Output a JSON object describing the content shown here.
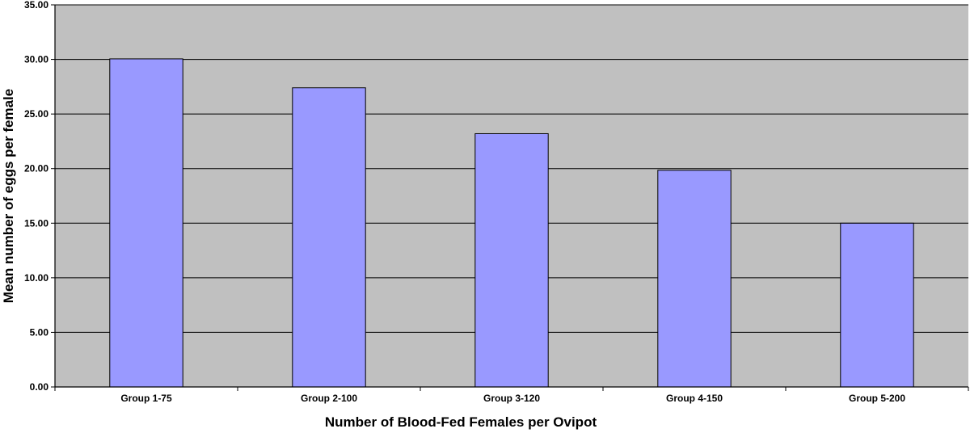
{
  "chart_data": {
    "type": "bar",
    "categories": [
      "Group 1-75",
      "Group 2-100",
      "Group 3-120",
      "Group 4-150",
      "Group 5-200"
    ],
    "values": [
      30.05,
      27.4,
      23.2,
      19.85,
      15.0
    ],
    "xlabel": "Number of Blood-Fed Females per Ovipot",
    "ylabel": "Mean number of eggs per female",
    "ylim": [
      0,
      35
    ],
    "yticks": [
      "0.00",
      "5.00",
      "10.00",
      "15.00",
      "20.00",
      "25.00",
      "30.00",
      "35.00"
    ],
    "grid": true,
    "legend": "none",
    "colors": {
      "bar": "#9999ff",
      "bar_edge": "#000000",
      "plot_background": "#c0c0c0",
      "gridline": "#000000"
    }
  }
}
